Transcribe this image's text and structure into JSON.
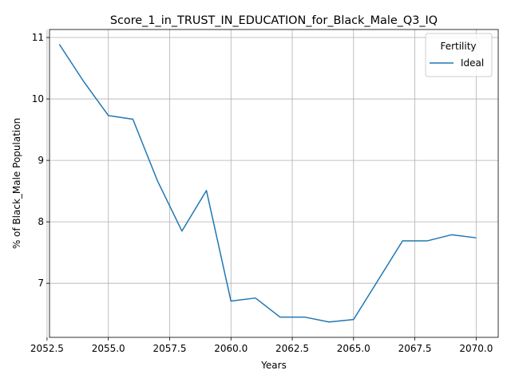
{
  "chart_data": {
    "type": "line",
    "title": "Score_1_in_TRUST_IN_EDUCATION_for_Black_Male_Q3_IQ",
    "xlabel": "Years",
    "ylabel": "% of Black_Male Population",
    "xlim": [
      2052.6,
      2070.9
    ],
    "ylim": [
      6.12,
      11.13
    ],
    "xticks": [
      2052.5,
      2055.0,
      2057.5,
      2060.0,
      2062.5,
      2065.0,
      2067.5,
      2070.0
    ],
    "xtick_labels": [
      "2052.5",
      "2055.0",
      "2057.5",
      "2060.0",
      "2062.5",
      "2065.0",
      "2067.5",
      "2070.0"
    ],
    "yticks": [
      7,
      8,
      9,
      10,
      11
    ],
    "ytick_labels": [
      "7",
      "8",
      "9",
      "10",
      "11"
    ],
    "grid": true,
    "legend": {
      "title": "Fertility",
      "placement": "top-right"
    },
    "series": [
      {
        "name": "Ideal",
        "color": "#1f77b4",
        "x": [
          2053,
          2054,
          2055,
          2056,
          2057,
          2058,
          2059,
          2060,
          2061,
          2062,
          2063,
          2064,
          2065,
          2066,
          2067,
          2068,
          2069,
          2070
        ],
        "y": [
          10.89,
          10.28,
          9.73,
          9.67,
          8.67,
          7.85,
          8.51,
          6.71,
          6.76,
          6.45,
          6.45,
          6.37,
          6.41,
          7.05,
          7.69,
          7.69,
          7.79,
          7.74
        ]
      }
    ]
  }
}
